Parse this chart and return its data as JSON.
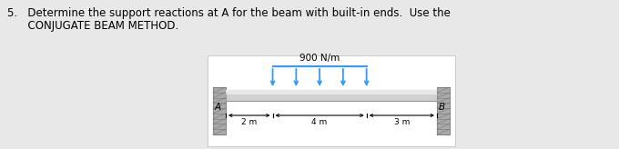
{
  "bg_color": "#e8e8e8",
  "diagram_bg": "#ffffff",
  "beam_color": "#d0d0d0",
  "beam_top_color": "#e8e8e8",
  "beam_border_color": "#999999",
  "wall_color": "#aaaaaa",
  "wall_dark": "#888888",
  "arrow_color": "#3399ff",
  "text_color": "#000000",
  "load_label": "900 N/m",
  "label_A": "A",
  "label_B": "B",
  "dim_labels": [
    "2 m",
    "4 m",
    "3 m"
  ],
  "line1": "5.   Determine the support reactions at A for the beam with built-in ends.  Use the",
  "line2": "      CONJUGATE BEAM METHOD.",
  "fig_width": 6.8,
  "fig_height": 1.64,
  "dpi": 100
}
